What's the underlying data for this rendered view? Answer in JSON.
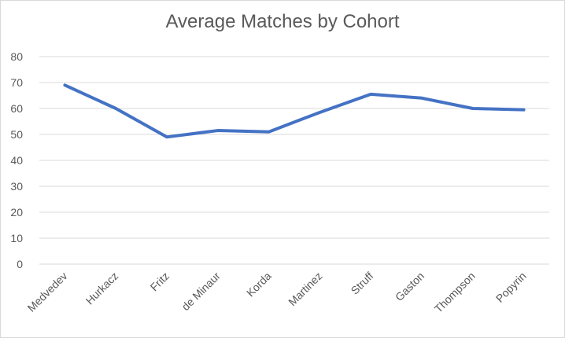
{
  "chart_data": {
    "type": "line",
    "title": "Average Matches by Cohort",
    "xlabel": "",
    "ylabel": "",
    "categories": [
      "Medvedev",
      "Hurkacz",
      "Fritz",
      "de Minaur",
      "Korda",
      "Martinez",
      "Struff",
      "Gaston",
      "Thompson",
      "Popyrin"
    ],
    "series": [
      {
        "values": [
          69,
          60,
          49,
          51.5,
          51,
          58.5,
          65.5,
          64,
          60,
          59.5
        ]
      }
    ],
    "ylim": [
      0,
      80
    ],
    "yticks": [
      0,
      10,
      20,
      30,
      40,
      50,
      60,
      70,
      80
    ],
    "grid": true,
    "legend": "none",
    "colors": {
      "line": "#4472c4",
      "grid": "#d9d9d9",
      "text": "#595959"
    }
  }
}
